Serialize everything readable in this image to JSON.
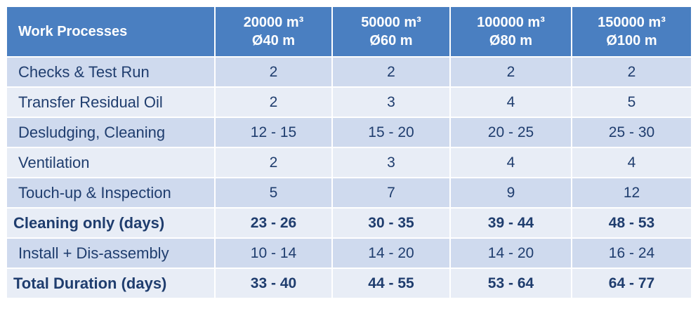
{
  "table": {
    "header": [
      [
        "Work Processes"
      ],
      [
        "20000 m³",
        "Ø40 m"
      ],
      [
        "50000 m³",
        "Ø60 m"
      ],
      [
        "100000 m³",
        "Ø80 m"
      ],
      [
        "150000 m³",
        "Ø100 m"
      ]
    ],
    "rows": [
      {
        "label": "Checks & Test Run",
        "cells": [
          "2",
          "2",
          "2",
          "2"
        ],
        "bold": false
      },
      {
        "label": "Transfer Residual Oil",
        "cells": [
          "2",
          "3",
          "4",
          "5"
        ],
        "bold": false
      },
      {
        "label": "Desludging, Cleaning",
        "cells": [
          "12 - 15",
          "15 - 20",
          "20 - 25",
          "25 - 30"
        ],
        "bold": false
      },
      {
        "label": "Ventilation",
        "cells": [
          "2",
          "3",
          "4",
          "4"
        ],
        "bold": false
      },
      {
        "label": "Touch-up & Inspection",
        "cells": [
          "5",
          "7",
          "9",
          "12"
        ],
        "bold": false
      },
      {
        "label": "Cleaning only (days)",
        "cells": [
          "23 - 26",
          "30 - 35",
          "39 - 44",
          "48 - 53"
        ],
        "bold": true
      },
      {
        "label": "Install + Dis-assembly",
        "cells": [
          "10 - 14",
          "14 - 20",
          "14 - 20",
          "16 - 24"
        ],
        "bold": false
      },
      {
        "label": "Total Duration  (days)",
        "cells": [
          "33 - 40",
          "44 - 55",
          "53 - 64",
          "64 - 77"
        ],
        "bold": true
      }
    ]
  }
}
